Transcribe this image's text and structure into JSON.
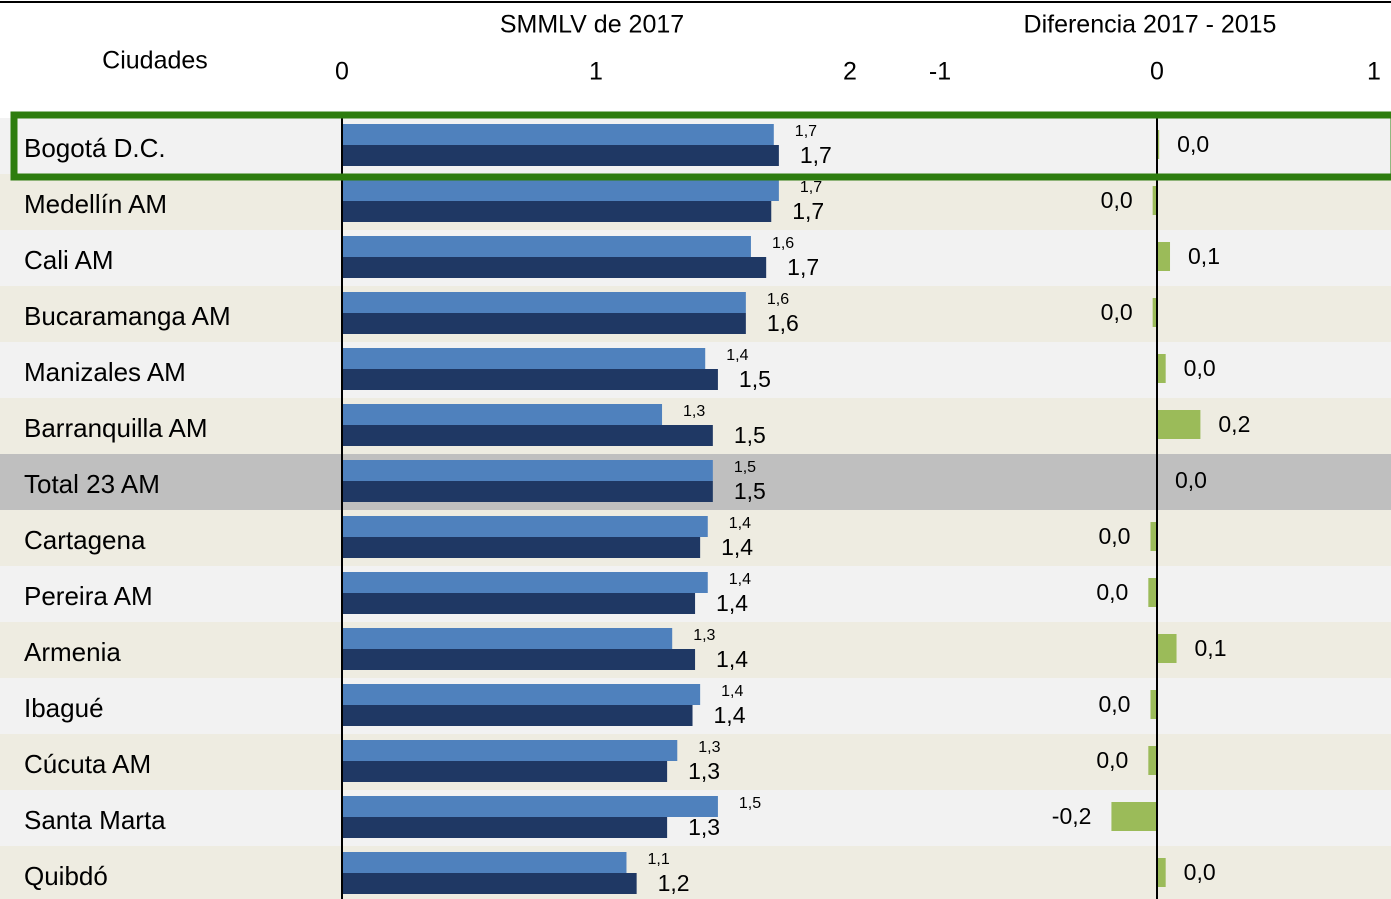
{
  "chart_data": [
    {
      "type": "bar",
      "orientation": "horizontal",
      "title": "SMMLV de 2017",
      "ylabel": "Ciudades",
      "categories": [
        "Bogotá D.C.",
        "Medellín AM",
        "Cali AM",
        "Bucaramanga AM",
        "Manizales AM",
        "Barranquilla AM",
        "Total 23 AM",
        "Cartagena",
        "Pereira AM",
        "Armenia",
        "Ibagué",
        "Cúcuta AM",
        "Santa Marta",
        "Quibdó"
      ],
      "series": [
        {
          "color": "#4f81bd",
          "values": [
            1.7,
            1.72,
            1.61,
            1.59,
            1.43,
            1.26,
            1.46,
            1.44,
            1.44,
            1.3,
            1.41,
            1.32,
            1.48,
            1.12
          ],
          "value_labels": [
            "1,7",
            "1,7",
            "1,6",
            "1,6",
            "1,4",
            "1,3",
            "1,5",
            "1,4",
            "1,4",
            "1,3",
            "1,4",
            "1,3",
            "1,5",
            "1,1"
          ]
        },
        {
          "color": "#1f3864",
          "values": [
            1.72,
            1.69,
            1.67,
            1.59,
            1.48,
            1.46,
            1.46,
            1.41,
            1.39,
            1.39,
            1.38,
            1.28,
            1.28,
            1.16
          ],
          "value_labels": [
            "1,7",
            "1,7",
            "1,7",
            "1,6",
            "1,5",
            "1,5",
            "1,5",
            "1,4",
            "1,4",
            "1,4",
            "1,4",
            "1,3",
            "1,3",
            "1,2"
          ]
        }
      ],
      "xlim": [
        0,
        2
      ],
      "xticks": [
        0,
        1,
        2
      ]
    },
    {
      "type": "bar",
      "orientation": "horizontal",
      "title": "Diferencia 2017 - 2015",
      "color": "#9bbb59",
      "values": [
        0.01,
        -0.02,
        0.06,
        -0.02,
        0.04,
        0.2,
        0,
        -0.03,
        -0.04,
        0.09,
        -0.03,
        -0.04,
        -0.21,
        0.04
      ],
      "value_labels": [
        "0,0",
        "0,0",
        "0,1",
        "0,0",
        "0,0",
        "0,2",
        "0,0",
        "0,0",
        "0,0",
        "0,1",
        "0,0",
        "0,0",
        "-0,2",
        "0,0"
      ],
      "xlim": [
        -1,
        1
      ],
      "xticks": [
        -1,
        0,
        1
      ]
    }
  ]
}
